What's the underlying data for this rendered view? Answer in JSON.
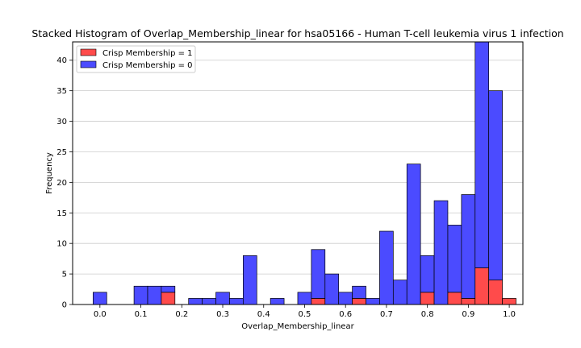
{
  "chart_data": {
    "type": "bar",
    "subtype": "stacked-histogram",
    "title": "Stacked Histogram of Overlap_Membership_linear for hsa05166 - Human T-cell leukemia virus 1 infection",
    "xlabel": "Overlap_Membership_linear",
    "ylabel": "Frequency",
    "xlim": [
      -0.0667,
      1.0333
    ],
    "ylim": [
      0,
      43
    ],
    "xticks": [
      "0.0",
      "0.1",
      "0.2",
      "0.3",
      "0.4",
      "0.5",
      "0.6",
      "0.7",
      "0.8",
      "0.9",
      "1.0"
    ],
    "xtick_values": [
      0.0,
      0.1,
      0.2,
      0.3,
      0.4,
      0.5,
      0.6,
      0.7,
      0.8,
      0.9,
      1.0
    ],
    "yticks": [
      "0",
      "5",
      "10",
      "15",
      "20",
      "25",
      "30",
      "35",
      "40"
    ],
    "ytick_values": [
      0,
      5,
      10,
      15,
      20,
      25,
      30,
      35,
      40
    ],
    "grid": "horizontal",
    "legend_position": "upper-left",
    "bin_start": -0.0167,
    "bin_width": 0.03333,
    "series": [
      {
        "name": "Crisp Membership = 1",
        "color": "#ff4b4b",
        "values": [
          0,
          0,
          0,
          0,
          0,
          2,
          0,
          0,
          0,
          0,
          0,
          0,
          0,
          0,
          0,
          0,
          1,
          0,
          0,
          1,
          0,
          0,
          0,
          0,
          2,
          0,
          2,
          1,
          6,
          4,
          1
        ]
      },
      {
        "name": "Crisp Membership = 0",
        "color": "#4b4bff",
        "values": [
          2,
          0,
          0,
          3,
          3,
          1,
          0,
          1,
          1,
          2,
          1,
          8,
          0,
          1,
          0,
          2,
          8,
          5,
          2,
          2,
          1,
          12,
          4,
          23,
          6,
          17,
          11,
          17,
          37,
          31,
          0
        ]
      }
    ]
  }
}
